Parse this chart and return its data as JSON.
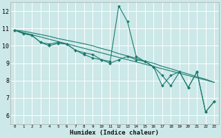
{
  "title": "",
  "xlabel": "Humidex (Indice chaleur)",
  "ylabel": "",
  "bg_color": "#cce8e8",
  "grid_color": "#ffffff",
  "line_color": "#1a7a6e",
  "marker_color": "#1a7a6e",
  "xlim": [
    -0.5,
    23.5
  ],
  "ylim": [
    5.5,
    12.5
  ],
  "xticks": [
    0,
    1,
    2,
    3,
    4,
    5,
    6,
    7,
    8,
    9,
    10,
    11,
    12,
    13,
    14,
    15,
    16,
    17,
    18,
    19,
    20,
    21,
    22,
    23
  ],
  "yticks": [
    6,
    7,
    8,
    9,
    10,
    11,
    12
  ],
  "series1_x": [
    0,
    1,
    2,
    3,
    4,
    5,
    6,
    7,
    8,
    9,
    10,
    11,
    12,
    13,
    14,
    15,
    16,
    17,
    18,
    19,
    20,
    21,
    22,
    23
  ],
  "series1_y": [
    10.9,
    10.7,
    10.6,
    10.2,
    10.0,
    10.15,
    10.1,
    9.75,
    9.5,
    9.3,
    9.2,
    9.1,
    12.3,
    11.4,
    9.4,
    9.1,
    8.8,
    8.3,
    7.7,
    8.5,
    7.6,
    8.5,
    6.2,
    6.8
  ],
  "series2_x": [
    0,
    1,
    2,
    3,
    4,
    5,
    6,
    7,
    8,
    9,
    10,
    11,
    12,
    13,
    14,
    15,
    16,
    17,
    18,
    19,
    20,
    21,
    22,
    23
  ],
  "series2_y": [
    10.9,
    10.85,
    10.75,
    10.65,
    10.55,
    10.42,
    10.32,
    10.22,
    10.12,
    10.0,
    9.85,
    9.72,
    9.55,
    9.42,
    9.28,
    9.12,
    9.0,
    8.82,
    8.68,
    8.52,
    8.38,
    8.22,
    8.08,
    7.9
  ],
  "series3_x": [
    0,
    2,
    3,
    4,
    5,
    6,
    7,
    8,
    9,
    10,
    11,
    12,
    13,
    14,
    15,
    16,
    17,
    18,
    19,
    20,
    21,
    22,
    23
  ],
  "series3_y": [
    10.9,
    10.6,
    10.2,
    10.1,
    10.2,
    10.1,
    9.75,
    9.6,
    9.5,
    9.2,
    9.0,
    9.2,
    9.4,
    9.2,
    9.1,
    8.8,
    7.7,
    8.3,
    8.5,
    7.6,
    8.5,
    6.2,
    6.8
  ],
  "trend_x": [
    0,
    23
  ],
  "trend_y": [
    10.9,
    7.9
  ]
}
